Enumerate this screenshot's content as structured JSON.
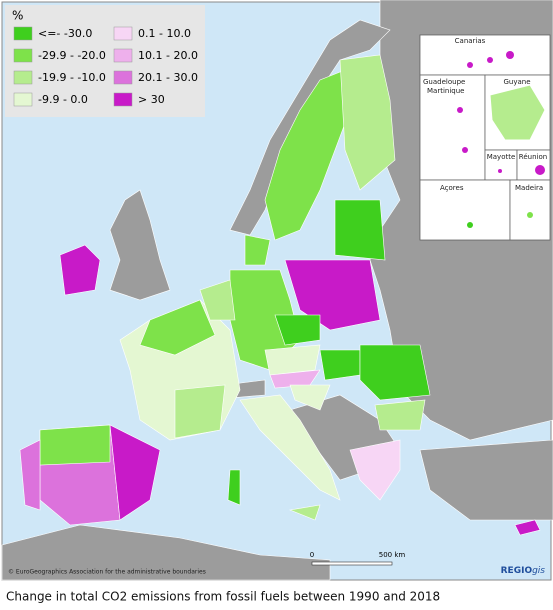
{
  "legend": {
    "title": "%",
    "items": [
      {
        "label": "<=- -30.0",
        "color": "#3fcf1e"
      },
      {
        "label": "-29.9 - -20.0",
        "color": "#7ee24a"
      },
      {
        "label": "-19.9 - -10.0",
        "color": "#b5ec8e"
      },
      {
        "label": "-9.9 - 0.0",
        "color": "#e4f7d2"
      },
      {
        "label": "0.1 - 10.0",
        "color": "#f7d6f5"
      },
      {
        "label": "10.1 - 20.0",
        "color": "#eeb0ec"
      },
      {
        "label": "20.1 - 30.0",
        "color": "#dc72dc"
      },
      {
        "label": "> 30",
        "color": "#c81ac8"
      }
    ]
  },
  "insets": [
    "Canarias",
    "Guadeloupe",
    "Martinique",
    "Guyane",
    "Mayotte",
    "Réunion",
    "Açores",
    "Madeira"
  ],
  "scale": {
    "start": "0",
    "end": "500 km"
  },
  "credit": "© EuroGeographics Association for the administrative boundaries",
  "logo": {
    "bold": "REGIO",
    "italic": "gis"
  },
  "caption": "Change in total CO2 emissions from fossil fuels between 1990 and 2018"
}
